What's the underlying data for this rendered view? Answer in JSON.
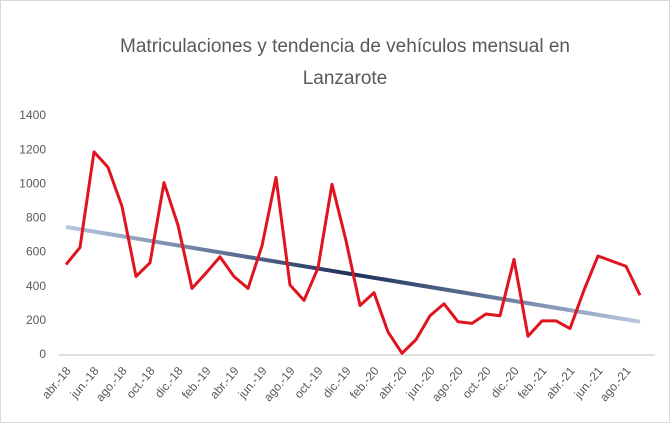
{
  "chart_data": {
    "type": "line",
    "title": [
      "Matriculaciones y tendencia de vehículos mensual en",
      "Lanzarote"
    ],
    "categories": [
      "abr.-18",
      null,
      "jun.-18",
      null,
      "ago.-18",
      null,
      "oct.-18",
      null,
      "dic.-18",
      null,
      "feb.-19",
      null,
      "abr.-19",
      null,
      "jun.-19",
      null,
      "ago.-19",
      null,
      "oct.-19",
      null,
      "dic.-19",
      null,
      "feb.-20",
      null,
      "abr.-20",
      null,
      "jun.-20",
      null,
      "ago.-20",
      null,
      "oct.-20",
      null,
      "dic.-20",
      null,
      "feb.-21",
      null,
      "abr.-21",
      null,
      "jun.-21",
      null,
      "ago.-21",
      null
    ],
    "series": [
      {
        "color": "#e0141e",
        "values": [
          530,
          630,
          1190,
          1100,
          870,
          460,
          540,
          1010,
          760,
          390,
          480,
          575,
          460,
          390,
          640,
          1040,
          410,
          320,
          510,
          1000,
          670,
          290,
          365,
          135,
          10,
          90,
          230,
          300,
          195,
          185,
          240,
          230,
          560,
          110,
          200,
          200,
          155,
          380,
          580,
          550,
          520,
          350
        ]
      }
    ],
    "trend": {
      "values": [
        750,
        195
      ],
      "colors": [
        "#b8c8e0",
        "#1b2f5a",
        "#b8c8e0"
      ]
    },
    "ylim": [
      0,
      1400
    ],
    "yticks": [
      0,
      200,
      400,
      600,
      800,
      1000,
      1200,
      1400
    ],
    "grid": false
  }
}
